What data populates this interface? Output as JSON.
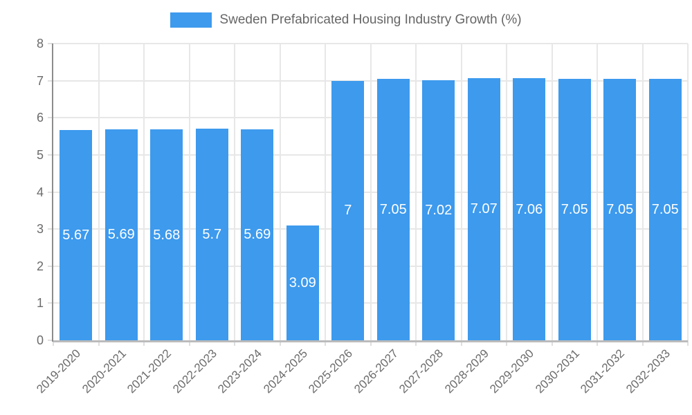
{
  "legend": {
    "label": "Sweden Prefabricated Housing Industry Growth (%)"
  },
  "chart_data": {
    "type": "bar",
    "title": "Sweden Prefabricated Housing Industry Growth (%)",
    "categories": [
      "2019-2020",
      "2020-2021",
      "2021-2022",
      "2022-2023",
      "2023-2024",
      "2024-2025",
      "2025-2026",
      "2026-2027",
      "2027-2028",
      "2028-2029",
      "2029-2030",
      "2030-2031",
      "2031-2032",
      "2032-2033"
    ],
    "values": [
      5.67,
      5.69,
      5.68,
      5.7,
      5.69,
      3.09,
      7,
      7.05,
      7.02,
      7.07,
      7.06,
      7.05,
      7.05,
      7.05
    ],
    "bar_labels": [
      "5.67",
      "5.69",
      "5.68",
      "5.7",
      "5.69",
      "3.09",
      "7",
      "7.05",
      "7.02",
      "7.07",
      "7.06",
      "7.05",
      "7.05",
      "7.05"
    ],
    "xlabel": "",
    "ylabel": "",
    "ylim": [
      0,
      8
    ],
    "yticks": [
      0,
      1,
      2,
      3,
      4,
      5,
      6,
      7,
      8
    ],
    "grid": true,
    "legend_position": "top",
    "x_label_rotation_deg": -45,
    "colors": {
      "bar": "#3D9AED",
      "bar_label_text": "#FFFFFF",
      "tick_text": "#6B6B6B",
      "legend_text": "#666666",
      "gridline": "#E7E7E7",
      "tick_mark": "#DEDEDE",
      "axis_y": "#8C8C8C",
      "axis_x": "#BBBBBB"
    }
  }
}
